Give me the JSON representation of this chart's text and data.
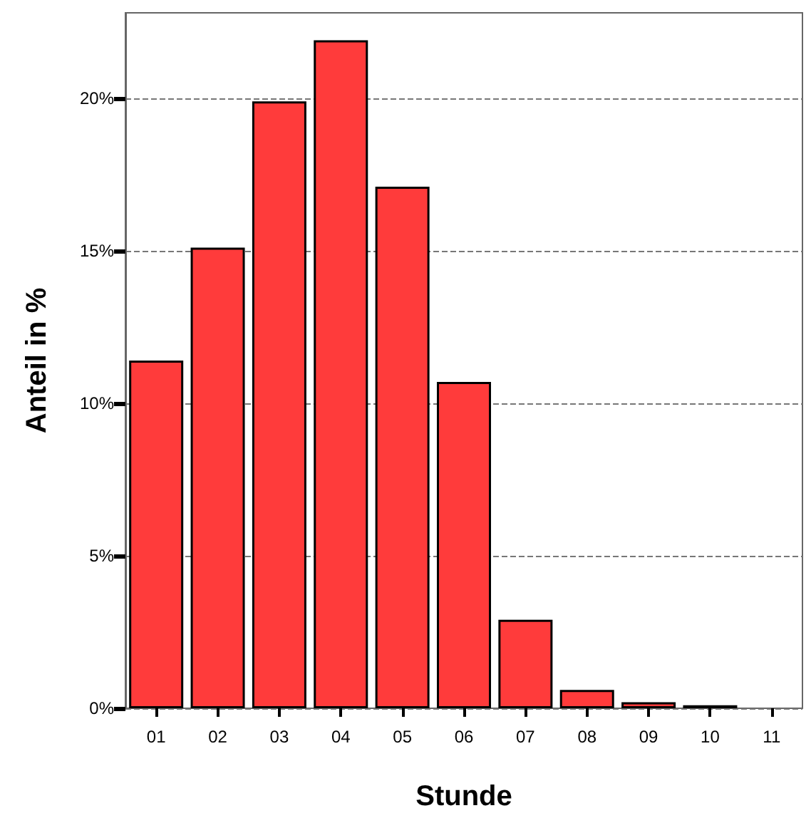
{
  "chart_data": {
    "type": "bar",
    "xlabel": "Stunde",
    "ylabel": "Anteil in %",
    "categories": [
      "01",
      "02",
      "03",
      "04",
      "05",
      "06",
      "07",
      "08",
      "09",
      "10",
      "11"
    ],
    "values": [
      11.4,
      15.1,
      19.9,
      21.9,
      17.1,
      10.7,
      2.9,
      0.6,
      0.2,
      0.1,
      null
    ],
    "color": "#ff3b3b",
    "ylim": [
      0,
      22.8
    ],
    "yticks": [
      {
        "value": 0,
        "label": "0%"
      },
      {
        "value": 5,
        "label": "5%"
      },
      {
        "value": 10,
        "label": "10%"
      },
      {
        "value": 15,
        "label": "15%"
      },
      {
        "value": 20,
        "label": "20%"
      }
    ],
    "grid": "y"
  }
}
